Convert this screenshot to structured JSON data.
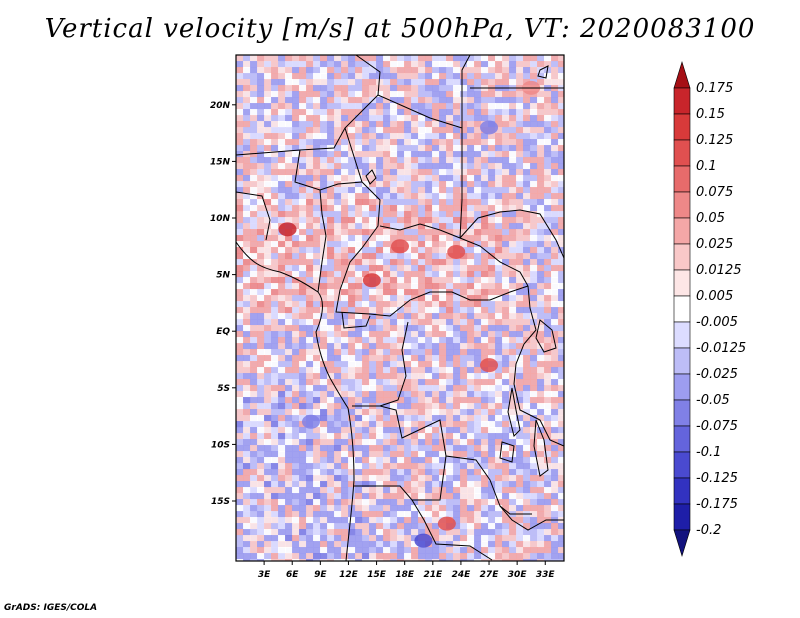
{
  "title": "Vertical velocity [m/s] at 500hPa, VT: 2020083100",
  "credit": "GrADS: IGES/COLA",
  "map": {
    "lon_range": [
      0,
      35
    ],
    "lat_range": [
      -20.3,
      24.4
    ],
    "lat_ticks": [
      {
        "value": 20,
        "label": "20N"
      },
      {
        "value": 15,
        "label": "15N"
      },
      {
        "value": 10,
        "label": "10N"
      },
      {
        "value": 5,
        "label": "5N"
      },
      {
        "value": 0,
        "label": "EQ"
      },
      {
        "value": -5,
        "label": "5S"
      },
      {
        "value": -10,
        "label": "10S"
      },
      {
        "value": -15,
        "label": "15S"
      }
    ],
    "lon_ticks": [
      {
        "value": 3,
        "label": "3E"
      },
      {
        "value": 6,
        "label": "6E"
      },
      {
        "value": 9,
        "label": "9E"
      },
      {
        "value": 12,
        "label": "12E"
      },
      {
        "value": 15,
        "label": "15E"
      },
      {
        "value": 18,
        "label": "18E"
      },
      {
        "value": 21,
        "label": "21E"
      },
      {
        "value": 24,
        "label": "24E"
      },
      {
        "value": 27,
        "label": "27E"
      },
      {
        "value": 30,
        "label": "30E"
      },
      {
        "value": 33,
        "label": "33E"
      }
    ]
  },
  "colorbar": {
    "labels": [
      "0.175",
      "0.15",
      "0.125",
      "0.1",
      "0.075",
      "0.05",
      "0.025",
      "0.0125",
      "0.005",
      "-0.005",
      "-0.0125",
      "-0.025",
      "-0.05",
      "-0.075",
      "-0.1",
      "-0.125",
      "-0.175",
      "-0.2"
    ],
    "colors": [
      "#a50f15",
      "#c8252b",
      "#d83a3a",
      "#e05050",
      "#e76b6b",
      "#ee8888",
      "#f4a7a7",
      "#f9c8c8",
      "#fde6e6",
      "#ffffff",
      "#dcdcff",
      "#bdbdf7",
      "#9d9df0",
      "#8080e6",
      "#6464dc",
      "#4a4ad0",
      "#3232c0",
      "#1e1ea8",
      "#12127e"
    ]
  },
  "chart_data": {
    "type": "heatmap",
    "title": "Vertical velocity [m/s] at 500hPa, VT: 2020083100",
    "variable": "Vertical velocity",
    "units": "m/s",
    "level": "500hPa",
    "valid_time": "2020083100",
    "region": {
      "lon": [
        0,
        35
      ],
      "lat": [
        -20.3,
        24.4
      ]
    },
    "contour_levels": [
      -0.2,
      -0.175,
      -0.125,
      -0.1,
      -0.075,
      -0.05,
      -0.025,
      -0.0125,
      -0.005,
      0.005,
      0.0125,
      0.025,
      0.05,
      0.075,
      0.1,
      0.125,
      0.15,
      0.175
    ],
    "features": [
      {
        "lon": 5.5,
        "lat": 9.0,
        "value": 0.15
      },
      {
        "lon": 14.5,
        "lat": 4.5,
        "value": 0.125
      },
      {
        "lon": 17.5,
        "lat": 7.5,
        "value": 0.1
      },
      {
        "lon": 23.5,
        "lat": 7.0,
        "value": 0.1
      },
      {
        "lon": 27.0,
        "lat": -3.0,
        "value": 0.1
      },
      {
        "lon": 22.5,
        "lat": -17.0,
        "value": 0.1
      },
      {
        "lon": 31.5,
        "lat": 21.5,
        "value": 0.05
      },
      {
        "lon": 20.0,
        "lat": -18.5,
        "value": -0.1
      },
      {
        "lon": 8.0,
        "lat": -8.0,
        "value": -0.05
      },
      {
        "lon": 27.0,
        "lat": 18.0,
        "value": -0.05
      }
    ]
  }
}
